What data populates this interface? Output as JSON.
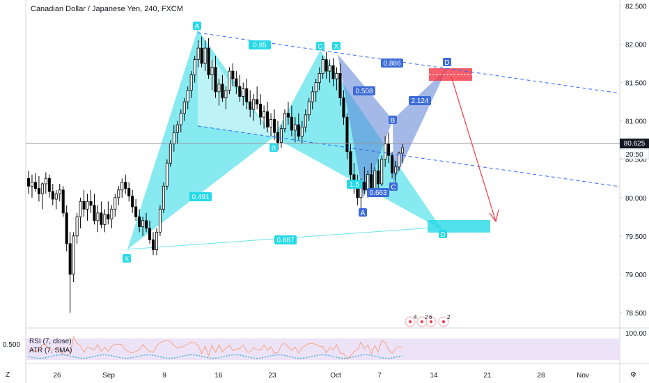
{
  "chart_data": {
    "type": "candlestick",
    "title": "Canadian Dollar / Japanese Yen, 240, FXCM",
    "y_ticks": [
      "82.500",
      "82.000",
      "81.500",
      "81.000",
      "80.500",
      "80.000",
      "79.500",
      "79.000",
      "78.500"
    ],
    "y_range": [
      78.3,
      82.55
    ],
    "x_ticks": [
      "26",
      "Sep",
      "9",
      "16",
      "23",
      "Oct",
      "7",
      "14",
      "21",
      "28",
      "Nov"
    ],
    "current_price": "80.625",
    "countdown": "20:50",
    "indicator": {
      "name_rsi": "RSI (7, close)",
      "name_atr": "ATR (7, SMA)",
      "left_value": "0.500",
      "right_value": "100.00"
    },
    "candles": [
      [
        80.25,
        80.35,
        80.05,
        80.15
      ],
      [
        80.15,
        80.3,
        80.0,
        80.2
      ],
      [
        80.2,
        80.32,
        80.08,
        80.12
      ],
      [
        80.12,
        80.28,
        79.95,
        80.05
      ],
      [
        80.05,
        80.2,
        79.85,
        80.18
      ],
      [
        80.18,
        80.33,
        80.05,
        80.25
      ],
      [
        80.25,
        80.3,
        80.0,
        80.08
      ],
      [
        80.08,
        80.18,
        79.9,
        79.98
      ],
      [
        79.98,
        80.1,
        79.85,
        80.05
      ],
      [
        80.05,
        80.18,
        79.95,
        80.1
      ],
      [
        80.1,
        80.15,
        79.75,
        79.8
      ],
      [
        79.8,
        79.9,
        79.3,
        79.4
      ],
      [
        79.4,
        79.55,
        78.5,
        79.0
      ],
      [
        79.0,
        79.55,
        78.9,
        79.5
      ],
      [
        79.5,
        79.8,
        79.4,
        79.75
      ],
      [
        79.75,
        80.0,
        79.6,
        79.95
      ],
      [
        79.95,
        80.1,
        79.75,
        79.85
      ],
      [
        79.85,
        80.05,
        79.7,
        79.95
      ],
      [
        79.95,
        80.1,
        79.8,
        79.9
      ],
      [
        79.9,
        80.05,
        79.65,
        79.7
      ],
      [
        79.7,
        79.9,
        79.55,
        79.8
      ],
      [
        79.8,
        79.95,
        79.6,
        79.65
      ],
      [
        79.65,
        79.85,
        79.55,
        79.78
      ],
      [
        79.78,
        79.95,
        79.65,
        79.72
      ],
      [
        79.72,
        79.9,
        79.6,
        79.85
      ],
      [
        79.85,
        80.05,
        79.75,
        80.0
      ],
      [
        80.0,
        80.15,
        79.9,
        80.1
      ],
      [
        80.1,
        80.25,
        80.0,
        80.2
      ],
      [
        80.2,
        80.3,
        80.05,
        80.12
      ],
      [
        80.12,
        80.2,
        79.95,
        80.02
      ],
      [
        80.02,
        80.1,
        79.8,
        79.88
      ],
      [
        79.88,
        79.98,
        79.7,
        79.75
      ],
      [
        79.75,
        79.85,
        79.55,
        79.62
      ],
      [
        79.62,
        79.75,
        79.5,
        79.7
      ],
      [
        79.7,
        79.8,
        79.55,
        79.6
      ],
      [
        79.6,
        79.7,
        79.4,
        79.45
      ],
      [
        79.45,
        79.55,
        79.25,
        79.32
      ],
      [
        79.32,
        79.6,
        79.25,
        79.55
      ],
      [
        79.55,
        79.9,
        79.5,
        79.85
      ],
      [
        79.85,
        80.2,
        79.8,
        80.15
      ],
      [
        80.15,
        80.5,
        80.1,
        80.45
      ],
      [
        80.45,
        80.75,
        80.4,
        80.7
      ],
      [
        80.7,
        80.95,
        80.6,
        80.85
      ],
      [
        80.85,
        81.0,
        80.7,
        80.95
      ],
      [
        80.95,
        81.15,
        80.85,
        81.1
      ],
      [
        81.1,
        81.3,
        81.0,
        81.25
      ],
      [
        81.25,
        81.45,
        81.15,
        81.4
      ],
      [
        81.4,
        81.65,
        81.3,
        81.6
      ],
      [
        81.6,
        81.85,
        81.5,
        81.8
      ],
      [
        81.8,
        82.05,
        81.7,
        81.95
      ],
      [
        81.95,
        82.1,
        81.7,
        81.75
      ],
      [
        81.75,
        82.05,
        81.65,
        81.95
      ],
      [
        81.95,
        82.08,
        81.55,
        81.6
      ],
      [
        81.6,
        81.8,
        81.4,
        81.7
      ],
      [
        81.7,
        81.85,
        81.3,
        81.38
      ],
      [
        81.38,
        81.55,
        81.2,
        81.48
      ],
      [
        81.48,
        81.6,
        81.25,
        81.3
      ],
      [
        81.3,
        81.45,
        81.15,
        81.4
      ],
      [
        81.4,
        81.7,
        81.35,
        81.65
      ],
      [
        81.65,
        81.75,
        81.45,
        81.55
      ],
      [
        81.55,
        81.65,
        81.35,
        81.45
      ],
      [
        81.45,
        81.6,
        81.25,
        81.32
      ],
      [
        81.32,
        81.5,
        81.2,
        81.42
      ],
      [
        81.42,
        81.55,
        81.15,
        81.25
      ],
      [
        81.25,
        81.4,
        81.05,
        81.15
      ],
      [
        81.15,
        81.35,
        81.0,
        81.28
      ],
      [
        81.28,
        81.45,
        81.15,
        81.22
      ],
      [
        81.22,
        81.35,
        80.95,
        81.05
      ],
      [
        81.05,
        81.2,
        80.9,
        81.12
      ],
      [
        81.12,
        81.25,
        80.85,
        80.92
      ],
      [
        80.92,
        81.1,
        80.8,
        81.02
      ],
      [
        81.02,
        81.15,
        80.75,
        80.85
      ],
      [
        80.85,
        81.0,
        80.62,
        80.72
      ],
      [
        80.72,
        80.95,
        80.65,
        80.9
      ],
      [
        80.9,
        81.15,
        80.85,
        81.1
      ],
      [
        81.1,
        81.25,
        80.95,
        81.05
      ],
      [
        81.05,
        81.2,
        80.8,
        80.88
      ],
      [
        80.88,
        81.05,
        80.72,
        80.95
      ],
      [
        80.95,
        81.1,
        80.75,
        80.8
      ],
      [
        80.8,
        81.0,
        80.7,
        80.92
      ],
      [
        80.92,
        81.15,
        80.85,
        81.08
      ],
      [
        81.08,
        81.3,
        81.0,
        81.25
      ],
      [
        81.25,
        81.45,
        81.15,
        81.38
      ],
      [
        81.38,
        81.55,
        81.25,
        81.5
      ],
      [
        81.5,
        81.7,
        81.4,
        81.62
      ],
      [
        81.62,
        81.85,
        81.55,
        81.8
      ],
      [
        81.8,
        81.9,
        81.55,
        81.65
      ],
      [
        81.65,
        81.8,
        81.5,
        81.72
      ],
      [
        81.72,
        81.82,
        81.45,
        81.55
      ],
      [
        81.55,
        81.7,
        81.4,
        81.62
      ],
      [
        81.62,
        81.75,
        81.2,
        81.3
      ],
      [
        81.3,
        81.4,
        80.95,
        81.05
      ],
      [
        81.05,
        81.1,
        80.5,
        80.6
      ],
      [
        80.6,
        80.7,
        80.2,
        80.3
      ],
      [
        80.3,
        80.45,
        80.05,
        80.15
      ],
      [
        80.15,
        80.3,
        79.9,
        80.0
      ],
      [
        80.0,
        80.25,
        79.85,
        80.2
      ],
      [
        80.2,
        80.4,
        80.05,
        80.1
      ],
      [
        80.1,
        80.35,
        80.0,
        80.3
      ],
      [
        80.3,
        80.45,
        80.05,
        80.12
      ],
      [
        80.12,
        80.4,
        80.05,
        80.35
      ],
      [
        80.35,
        80.5,
        80.1,
        80.18
      ],
      [
        80.18,
        80.55,
        80.15,
        80.5
      ],
      [
        80.5,
        80.8,
        80.4,
        80.7
      ],
      [
        80.7,
        80.85,
        80.45,
        80.55
      ],
      [
        80.55,
        80.6,
        80.25,
        80.32
      ],
      [
        80.32,
        80.48,
        80.2,
        80.4
      ],
      [
        80.4,
        80.6,
        80.35,
        80.58
      ],
      [
        80.58,
        80.7,
        80.45,
        80.65
      ]
    ]
  }
}
